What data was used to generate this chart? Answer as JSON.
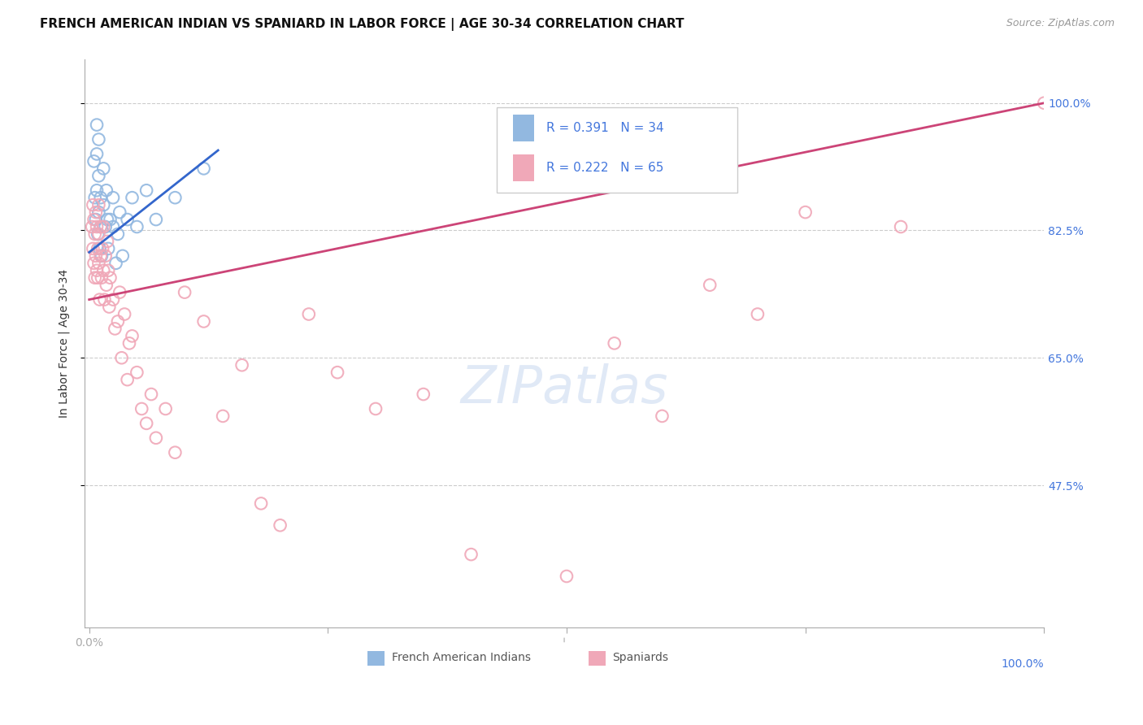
{
  "title": "FRENCH AMERICAN INDIAN VS SPANIARD IN LABOR FORCE | AGE 30-34 CORRELATION CHART",
  "source": "Source: ZipAtlas.com",
  "ylabel": "In Labor Force | Age 30-34",
  "ytick_labels": [
    "100.0%",
    "82.5%",
    "65.0%",
    "47.5%"
  ],
  "ytick_values": [
    1.0,
    0.825,
    0.65,
    0.475
  ],
  "background_color": "#ffffff",
  "grid_color": "#cccccc",
  "blue_color": "#92b8e0",
  "pink_color": "#f0a8b8",
  "blue_line_color": "#3366cc",
  "pink_line_color": "#cc4477",
  "right_axis_color": "#4477dd",
  "legend_R_blue": "0.391",
  "legend_N_blue": "34",
  "legend_R_pink": "0.222",
  "legend_N_pink": "65",
  "legend_label_blue": "French American Indians",
  "legend_label_pink": "Spaniards",
  "blue_scatter_x": [
    0.005,
    0.006,
    0.007,
    0.008,
    0.008,
    0.008,
    0.009,
    0.01,
    0.01,
    0.01,
    0.011,
    0.012,
    0.012,
    0.013,
    0.015,
    0.015,
    0.017,
    0.018,
    0.019,
    0.02,
    0.022,
    0.025,
    0.025,
    0.028,
    0.03,
    0.032,
    0.035,
    0.04,
    0.045,
    0.05,
    0.06,
    0.07,
    0.09,
    0.12
  ],
  "blue_scatter_y": [
    0.92,
    0.87,
    0.84,
    0.97,
    0.93,
    0.88,
    0.82,
    0.95,
    0.9,
    0.85,
    0.8,
    0.87,
    0.83,
    0.79,
    0.91,
    0.86,
    0.83,
    0.88,
    0.84,
    0.8,
    0.84,
    0.87,
    0.83,
    0.78,
    0.82,
    0.85,
    0.79,
    0.84,
    0.87,
    0.83,
    0.88,
    0.84,
    0.87,
    0.91
  ],
  "pink_scatter_x": [
    0.003,
    0.004,
    0.004,
    0.005,
    0.005,
    0.006,
    0.006,
    0.007,
    0.007,
    0.008,
    0.008,
    0.009,
    0.009,
    0.01,
    0.01,
    0.01,
    0.011,
    0.012,
    0.012,
    0.013,
    0.014,
    0.015,
    0.015,
    0.016,
    0.017,
    0.018,
    0.019,
    0.02,
    0.021,
    0.022,
    0.025,
    0.027,
    0.03,
    0.032,
    0.034,
    0.037,
    0.04,
    0.042,
    0.045,
    0.05,
    0.055,
    0.06,
    0.065,
    0.07,
    0.08,
    0.09,
    0.1,
    0.12,
    0.14,
    0.16,
    0.18,
    0.2,
    0.23,
    0.26,
    0.3,
    0.35,
    0.4,
    0.5,
    0.55,
    0.6,
    0.65,
    0.7,
    0.75,
    0.85,
    1.0
  ],
  "pink_scatter_y": [
    0.83,
    0.8,
    0.86,
    0.78,
    0.84,
    0.76,
    0.82,
    0.79,
    0.85,
    0.77,
    0.83,
    0.8,
    0.76,
    0.82,
    0.78,
    0.86,
    0.73,
    0.79,
    0.83,
    0.76,
    0.8,
    0.77,
    0.83,
    0.73,
    0.79,
    0.75,
    0.81,
    0.77,
    0.72,
    0.76,
    0.73,
    0.69,
    0.7,
    0.74,
    0.65,
    0.71,
    0.62,
    0.67,
    0.68,
    0.63,
    0.58,
    0.56,
    0.6,
    0.54,
    0.58,
    0.52,
    0.74,
    0.7,
    0.57,
    0.64,
    0.45,
    0.42,
    0.71,
    0.63,
    0.58,
    0.6,
    0.38,
    0.35,
    0.67,
    0.57,
    0.75,
    0.71,
    0.85,
    0.83,
    1.0
  ],
  "blue_line_x": [
    0.0,
    0.135
  ],
  "blue_line_y": [
    0.795,
    0.935
  ],
  "pink_line_x": [
    0.0,
    1.0
  ],
  "pink_line_y": [
    0.73,
    1.0
  ],
  "xlim": [
    -0.005,
    1.0
  ],
  "ylim": [
    0.28,
    1.06
  ],
  "watermark": "ZIPatlas"
}
